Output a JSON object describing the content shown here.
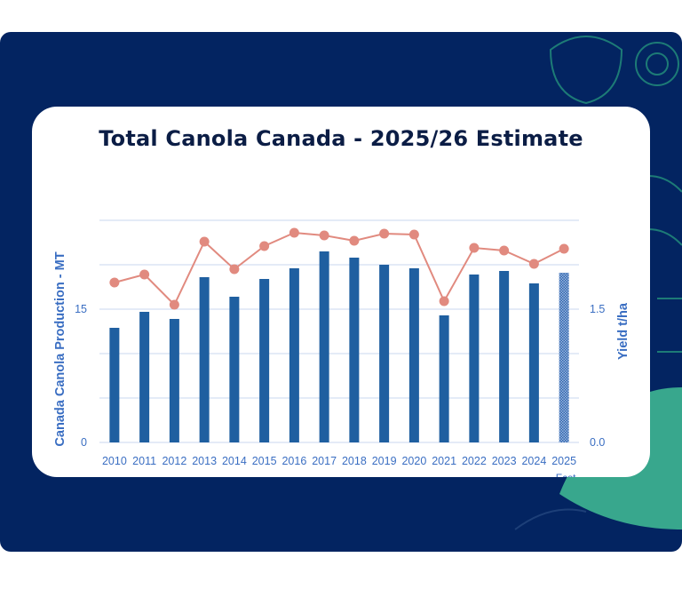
{
  "colors": {
    "page_bg": "#032461",
    "card_bg": "#ffffff",
    "bar": "#1f5fa0",
    "forecast_bar": "#2b64ad",
    "line": "#e18a7f",
    "axis_text": "#3a6ec2",
    "grid": "#c9d7ef",
    "title": "#0b1d45",
    "deco_green": "#38a78d",
    "deco_line": "#1d7b76"
  },
  "chart_data": {
    "type": "bar",
    "title": "Total Canola Canada - 2025/26 Estimate",
    "categories": [
      "2010",
      "2011",
      "2012",
      "2013",
      "2014",
      "2015",
      "2016",
      "2017",
      "2018",
      "2019",
      "2020",
      "2021",
      "2022",
      "2023",
      "2024",
      "2025"
    ],
    "category_sublabels": [
      "",
      "",
      "",
      "",
      "",
      "",
      "",
      "",
      "",
      "",
      "",
      "",
      "",
      "",
      "",
      "Fcst"
    ],
    "ylabel": "Canada Canola Production - MT",
    "y2label": "Yield t/ha",
    "ylim": [
      0,
      25
    ],
    "y2lim": [
      0,
      2.5
    ],
    "y_ticks": [
      {
        "value": 0,
        "label": "0"
      },
      {
        "value": 15,
        "label": "15"
      }
    ],
    "y2_ticks": [
      {
        "value": 0,
        "label": "0.0"
      },
      {
        "value": 1.5,
        "label": "1.5"
      }
    ],
    "gridlines": [
      0,
      5,
      10,
      15,
      20,
      25
    ],
    "series": [
      {
        "type": "bar",
        "values": [
          12.9,
          14.7,
          13.9,
          18.6,
          16.4,
          18.4,
          19.6,
          21.5,
          20.8,
          20.0,
          19.6,
          14.3,
          18.9,
          19.3,
          17.9,
          19.1
        ],
        "forecast_index": 15
      },
      {
        "type": "line",
        "axis": "right",
        "values": [
          1.8,
          1.89,
          1.55,
          2.26,
          1.95,
          2.21,
          2.36,
          2.33,
          2.27,
          2.35,
          2.34,
          1.59,
          2.19,
          2.16,
          2.01,
          2.18
        ]
      }
    ]
  }
}
